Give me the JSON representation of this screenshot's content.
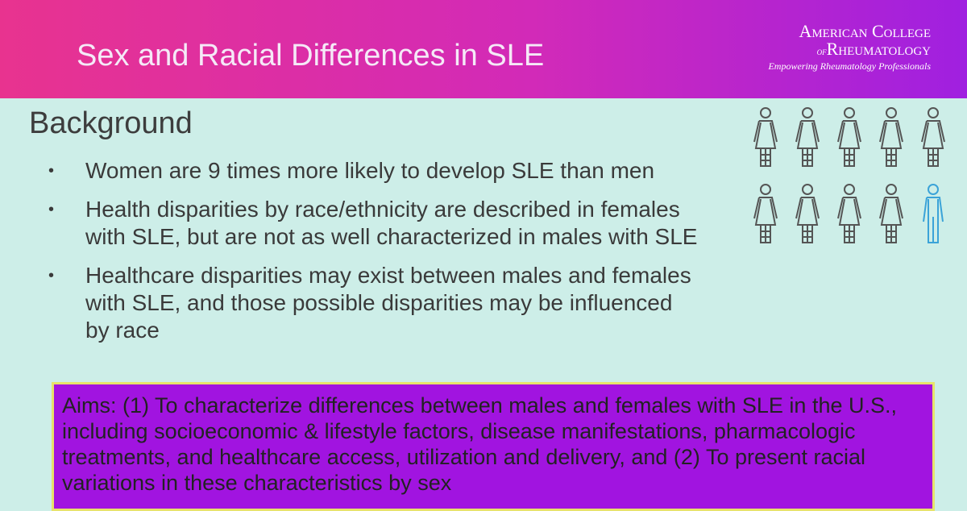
{
  "header": {
    "title": "Sex and Racial Differences in SLE",
    "logo": {
      "line1": "American College",
      "line2_prefix": "of",
      "line2": "Rheumatology",
      "tagline": "Empowering Rheumatology Professionals"
    }
  },
  "section": {
    "heading": "Background",
    "bullets": [
      "Women are 9 times more likely to develop SLE than men",
      "Health disparities by race/ethnicity are described in females with SLE, but are not as well characterized in males with SLE",
      "Healthcare disparities may exist between males and females with SLE, and those possible disparities may be influenced by race"
    ]
  },
  "aims": "Aims: (1) To characterize differences between males and females with SLE in the U.S., including socioeconomic & lifestyle factors, disease manifestations, pharmacologic treatments, and healthcare access, utilization and delivery, and (2) To present racial variations in these characteristics by sex"
}
